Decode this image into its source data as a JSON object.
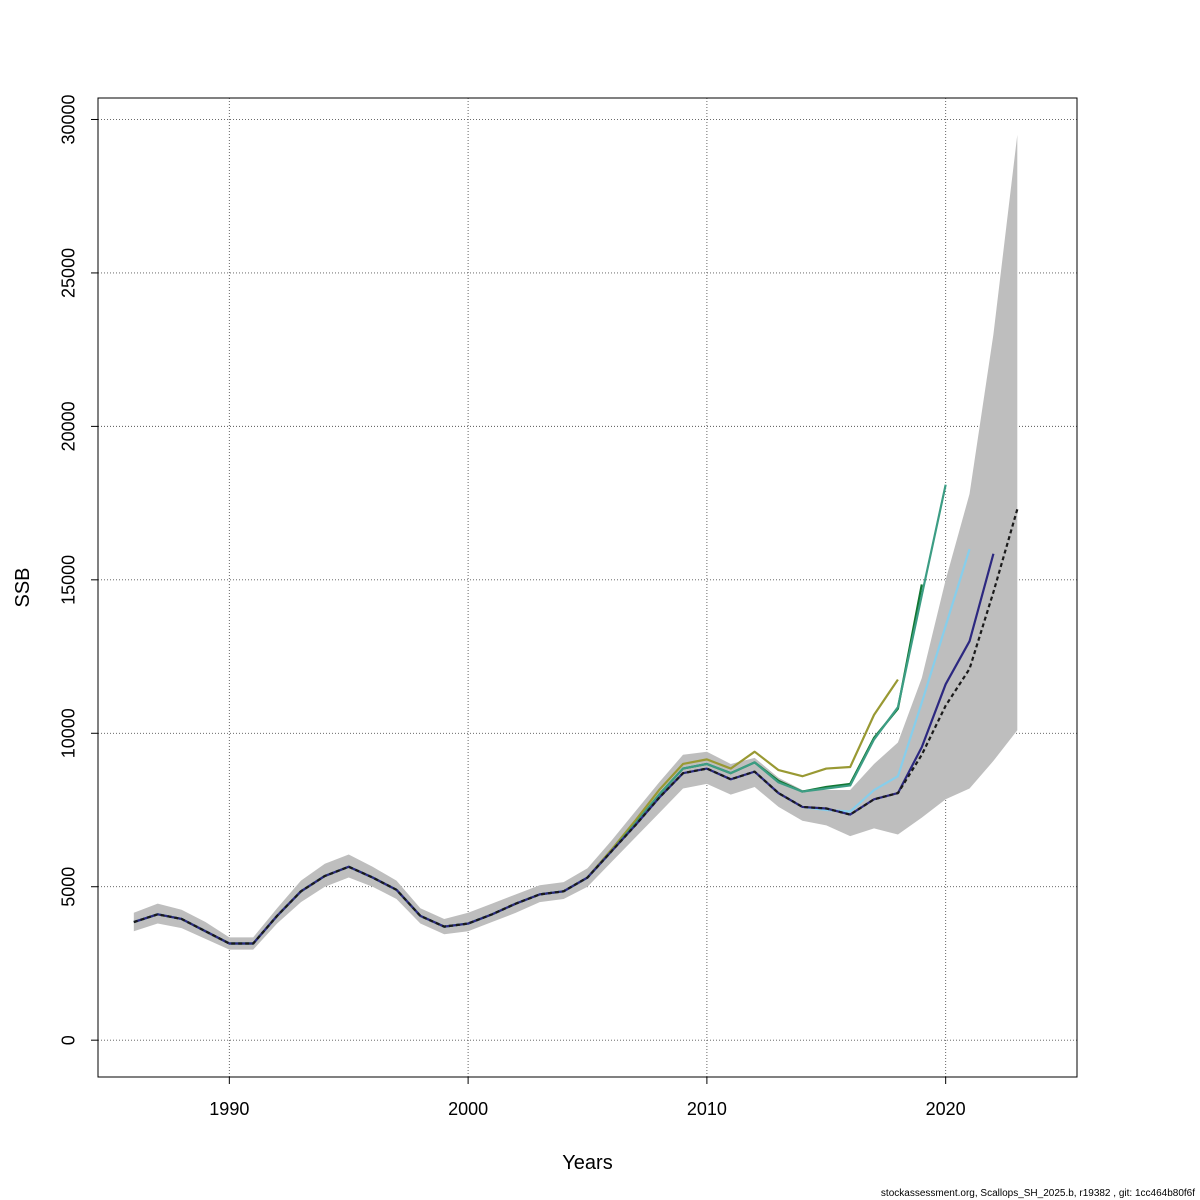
{
  "chart_data": {
    "type": "line",
    "title": "",
    "xlabel": "Years",
    "ylabel": "SSB",
    "xlim": [
      1984.5,
      2025.5
    ],
    "ylim": [
      -1200,
      30700
    ],
    "xticks": [
      1990,
      2000,
      2010,
      2020
    ],
    "yticks": [
      0,
      5000,
      10000,
      15000,
      20000,
      25000,
      30000
    ],
    "grid": true,
    "legend": "none",
    "confidence_band": {
      "color": "#bebebe",
      "x": [
        1986,
        1987,
        1988,
        1989,
        1990,
        1991,
        1992,
        1993,
        1994,
        1995,
        1996,
        1997,
        1998,
        1999,
        2000,
        2001,
        2002,
        2003,
        2004,
        2005,
        2006,
        2007,
        2008,
        2009,
        2010,
        2011,
        2012,
        2013,
        2014,
        2015,
        2016,
        2017,
        2018,
        2019,
        2020,
        2021,
        2022,
        2023
      ],
      "lower": [
        3550,
        3800,
        3650,
        3300,
        2950,
        2950,
        3800,
        4500,
        5000,
        5300,
        5000,
        4600,
        3800,
        3450,
        3550,
        3850,
        4150,
        4500,
        4600,
        5000,
        5800,
        6600,
        7400,
        8200,
        8350,
        8000,
        8250,
        7600,
        7150,
        7000,
        6650,
        6900,
        6700,
        7250,
        7850,
        8200,
        9100,
        10100
      ],
      "upper": [
        4150,
        4450,
        4250,
        3850,
        3350,
        3350,
        4300,
        5200,
        5750,
        6050,
        5650,
        5200,
        4300,
        3950,
        4150,
        4450,
        4750,
        5050,
        5150,
        5600,
        6500,
        7450,
        8400,
        9300,
        9400,
        9000,
        9200,
        8550,
        8150,
        8150,
        8150,
        9000,
        9700,
        11800,
        15000,
        17800,
        23000,
        29500
      ]
    },
    "series": [
      {
        "color": "#1a1a1a",
        "dashed": true,
        "x": [
          1986,
          1987,
          1988,
          1989,
          1990,
          1991,
          1992,
          1993,
          1994,
          1995,
          1996,
          1997,
          1998,
          1999,
          2000,
          2001,
          2002,
          2003,
          2004,
          2005,
          2006,
          2007,
          2008,
          2009,
          2010,
          2011,
          2012,
          2013,
          2014,
          2015,
          2016,
          2017,
          2018,
          2019,
          2020,
          2021,
          2022,
          2023
        ],
        "values": [
          3850,
          4100,
          3950,
          3550,
          3150,
          3150,
          4050,
          4850,
          5350,
          5650,
          5300,
          4900,
          4050,
          3700,
          3800,
          4100,
          4450,
          4750,
          4850,
          5300,
          6150,
          7000,
          7900,
          8700,
          8850,
          8500,
          8750,
          8050,
          7600,
          7550,
          7350,
          7850,
          8050,
          9300,
          10900,
          12100,
          14600,
          17300
        ]
      },
      {
        "color": "#2c2880",
        "dashed": false,
        "x": [
          1986,
          1987,
          1988,
          1989,
          1990,
          1991,
          1992,
          1993,
          1994,
          1995,
          1996,
          1997,
          1998,
          1999,
          2000,
          2001,
          2002,
          2003,
          2004,
          2005,
          2006,
          2007,
          2008,
          2009,
          2010,
          2011,
          2012,
          2013,
          2014,
          2015,
          2016,
          2017,
          2018,
          2019,
          2020,
          2021,
          2022
        ],
        "values": [
          3850,
          4100,
          3950,
          3550,
          3150,
          3150,
          4050,
          4850,
          5350,
          5650,
          5300,
          4900,
          4050,
          3700,
          3800,
          4100,
          4450,
          4750,
          4850,
          5300,
          6150,
          7000,
          7900,
          8700,
          8850,
          8500,
          8750,
          8050,
          7600,
          7550,
          7350,
          7850,
          8050,
          9550,
          11600,
          13000,
          15850
        ]
      },
      {
        "color": "#87ceeb",
        "dashed": false,
        "x": [
          1986,
          1987,
          1988,
          1989,
          1990,
          1991,
          1992,
          1993,
          1994,
          1995,
          1996,
          1997,
          1998,
          1999,
          2000,
          2001,
          2002,
          2003,
          2004,
          2005,
          2006,
          2007,
          2008,
          2009,
          2010,
          2011,
          2012,
          2013,
          2014,
          2015,
          2016,
          2017,
          2018,
          2019,
          2020,
          2021
        ],
        "values": [
          3850,
          4100,
          3950,
          3550,
          3150,
          3150,
          4050,
          4850,
          5350,
          5650,
          5300,
          4900,
          4050,
          3700,
          3800,
          4100,
          4450,
          4750,
          4850,
          5300,
          6150,
          7000,
          7900,
          8700,
          8850,
          8500,
          8750,
          8050,
          7600,
          7500,
          7450,
          8150,
          8600,
          11000,
          13500,
          16000
        ]
      },
      {
        "color": "#3c9d84",
        "dashed": false,
        "x": [
          1986,
          1987,
          1988,
          1989,
          1990,
          1991,
          1992,
          1993,
          1994,
          1995,
          1996,
          1997,
          1998,
          1999,
          2000,
          2001,
          2002,
          2003,
          2004,
          2005,
          2006,
          2007,
          2008,
          2009,
          2010,
          2011,
          2012,
          2013,
          2014,
          2015,
          2016,
          2017,
          2018,
          2019,
          2020
        ],
        "values": [
          3850,
          4100,
          3950,
          3550,
          3150,
          3150,
          4050,
          4850,
          5350,
          5650,
          5300,
          4900,
          4050,
          3700,
          3800,
          4100,
          4450,
          4750,
          4850,
          5300,
          6150,
          7050,
          8000,
          8850,
          9000,
          8700,
          9050,
          8400,
          8100,
          8200,
          8300,
          9800,
          10850,
          14500,
          18100
        ]
      },
      {
        "color": "#117733",
        "dashed": false,
        "x": [
          1986,
          1987,
          1988,
          1989,
          1990,
          1991,
          1992,
          1993,
          1994,
          1995,
          1996,
          1997,
          1998,
          1999,
          2000,
          2001,
          2002,
          2003,
          2004,
          2005,
          2006,
          2007,
          2008,
          2009,
          2010,
          2011,
          2012,
          2013,
          2014,
          2015,
          2016,
          2017,
          2018,
          2019
        ],
        "values": [
          3850,
          4100,
          3950,
          3550,
          3150,
          3150,
          4050,
          4850,
          5350,
          5650,
          5300,
          4900,
          4050,
          3700,
          3800,
          4100,
          4450,
          4750,
          4850,
          5300,
          6150,
          7050,
          8000,
          8850,
          9000,
          8700,
          9050,
          8450,
          8100,
          8250,
          8350,
          9850,
          10800,
          14850
        ]
      },
      {
        "color": "#999933",
        "dashed": false,
        "x": [
          1986,
          1987,
          1988,
          1989,
          1990,
          1991,
          1992,
          1993,
          1994,
          1995,
          1996,
          1997,
          1998,
          1999,
          2000,
          2001,
          2002,
          2003,
          2004,
          2005,
          2006,
          2007,
          2008,
          2009,
          2010,
          2011,
          2012,
          2013,
          2014,
          2015,
          2016,
          2017,
          2018
        ],
        "values": [
          3850,
          4100,
          3950,
          3550,
          3150,
          3150,
          4050,
          4850,
          5350,
          5650,
          5300,
          4900,
          4050,
          3700,
          3800,
          4100,
          4450,
          4750,
          4850,
          5300,
          6200,
          7150,
          8150,
          9000,
          9150,
          8850,
          9400,
          8800,
          8600,
          8850,
          8900,
          10600,
          11750
        ]
      }
    ]
  },
  "footer": "stockassessment.org, Scallops_SH_2025.b, r19382 , git: 1cc464b80f6f"
}
